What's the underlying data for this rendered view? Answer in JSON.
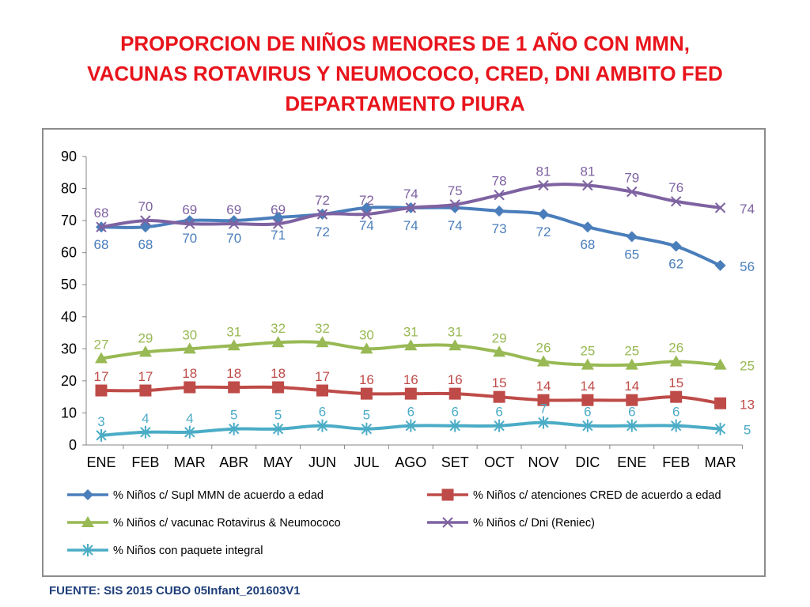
{
  "title": {
    "lines": [
      "PROPORCION DE NIÑOS MENORES DE 1 AÑO CON MMN,",
      "VACUNAS ROTAVIRUS Y NEUMOCOCO, CRED, DNI AMBITO FED",
      "DEPARTAMENTO PIURA"
    ]
  },
  "source": "FUENTE: SIS 2015 CUBO 05Infant_201603V1",
  "chart_data": {
    "type": "line",
    "title": "PROPORCION DE NIÑOS MENORES DE 1 AÑO CON MMN, VACUNAS ROTAVIRUS Y NEUMOCOCO, CRED, DNI AMBITO FED DEPARTAMENTO PIURA",
    "xlabel": "",
    "ylabel": "",
    "ylim": [
      0,
      90
    ],
    "yticks": [
      "0",
      "10",
      "20",
      "30",
      "40",
      "50",
      "60",
      "70",
      "80",
      "90"
    ],
    "grid": false,
    "legend_position": "bottom",
    "categories": [
      "ENE",
      "FEB",
      "MAR",
      "ABR",
      "MAY",
      "JUN",
      "JUL",
      "AGO",
      "SET",
      "OCT",
      "NOV",
      "DIC",
      "ENE",
      "FEB",
      "MAR"
    ],
    "series": [
      {
        "name": "% Niños c/ Supl MMN de acuerdo a edad",
        "color": "#4a7ebb",
        "marker": "diamond",
        "values": [
          68,
          68,
          70,
          70,
          71,
          72,
          74,
          74,
          74,
          73,
          72,
          68,
          65,
          62,
          56
        ],
        "labels": [
          "68",
          "68",
          "70",
          "70",
          "71",
          "72",
          "74",
          "74",
          "74",
          "73",
          "72",
          "68",
          "65",
          "62",
          "56"
        ]
      },
      {
        "name": "% Niños c/ atenciones CRED de acuerdo a edad",
        "color": "#be4b48",
        "marker": "square",
        "values": [
          17,
          17,
          18,
          18,
          18,
          17,
          16,
          16,
          16,
          15,
          14,
          14,
          14,
          15,
          13
        ],
        "labels": [
          "17",
          "17",
          "18",
          "18",
          "18",
          "17",
          "16",
          "16",
          "16",
          "15",
          "14",
          "14",
          "14",
          "15",
          "13"
        ]
      },
      {
        "name": "% Niños c/ vacunac Rotavirus & Neumococo",
        "color": "#98b954",
        "marker": "triangle",
        "values": [
          27,
          29,
          30,
          31,
          32,
          32,
          30,
          31,
          31,
          29,
          26,
          25,
          25,
          26,
          25
        ],
        "labels": [
          "27",
          "29",
          "30",
          "31",
          "32",
          "32",
          "30",
          "31",
          "31",
          "29",
          "26",
          "25",
          "25",
          "26",
          "25"
        ]
      },
      {
        "name": "% Niños c/ Dni (Reniec)",
        "color": "#7e62a1",
        "marker": "x",
        "values": [
          68,
          70,
          69,
          69,
          69,
          72,
          72,
          74,
          75,
          78,
          81,
          81,
          79,
          76,
          74
        ],
        "labels": [
          "68",
          "70",
          "69",
          "69",
          "69",
          "72",
          "72",
          "74",
          "75",
          "78",
          "81",
          "81",
          "79",
          "76",
          "74"
        ]
      },
      {
        "name": "% Niños con paquete integral",
        "color": "#4bacc6",
        "marker": "star",
        "values": [
          3,
          4,
          4,
          5,
          5,
          6,
          5,
          6,
          6,
          6,
          7,
          6,
          6,
          6,
          5
        ],
        "labels": [
          "3",
          "4",
          "4",
          "5",
          "5",
          "6",
          "5",
          "6",
          "6",
          "6",
          "7",
          "6",
          "6",
          "6",
          "5"
        ]
      }
    ]
  }
}
